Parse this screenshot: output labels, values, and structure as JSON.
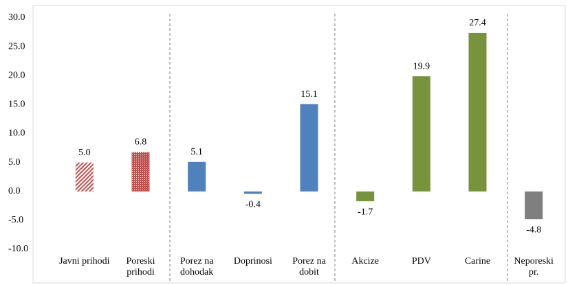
{
  "chart_data": {
    "type": "bar",
    "categories": [
      "Javni prihodi",
      "Poreski prihodi",
      "Porez na dohodak",
      "Doprinosi",
      "Porez na dobit",
      "Akcize",
      "PDV",
      "Carine",
      "Neporeski pr."
    ],
    "values": [
      5.0,
      6.8,
      5.1,
      -0.4,
      15.1,
      -1.7,
      19.9,
      27.4,
      -4.8
    ],
    "value_labels": [
      "5.0",
      "6.8",
      "5.1",
      "-0.4",
      "15.1",
      "-1.7",
      "19.9",
      "27.4",
      "-4.8"
    ],
    "colors": [
      "#c0504d",
      "#c0504d",
      "#4f81bd",
      "#4f81bd",
      "#4f81bd",
      "#77933c",
      "#77933c",
      "#77933c",
      "#7f7f7f"
    ],
    "patterns": [
      "diagonal",
      "dots",
      "solid",
      "solid",
      "solid",
      "solid",
      "solid",
      "solid",
      "solid"
    ],
    "ylim": [
      -10,
      30
    ],
    "yticks": [
      {
        "value": -10,
        "label": "-10.0"
      },
      {
        "value": -5,
        "label": "-5.0"
      },
      {
        "value": 0,
        "label": "0.0"
      },
      {
        "value": 5,
        "label": "5.0"
      },
      {
        "value": 10,
        "label": "10.0"
      },
      {
        "value": 15,
        "label": "15.0"
      },
      {
        "value": 20,
        "label": "20.0"
      },
      {
        "value": 25,
        "label": "25.0"
      },
      {
        "value": 30,
        "label": "30.0"
      }
    ],
    "grid": false
  }
}
